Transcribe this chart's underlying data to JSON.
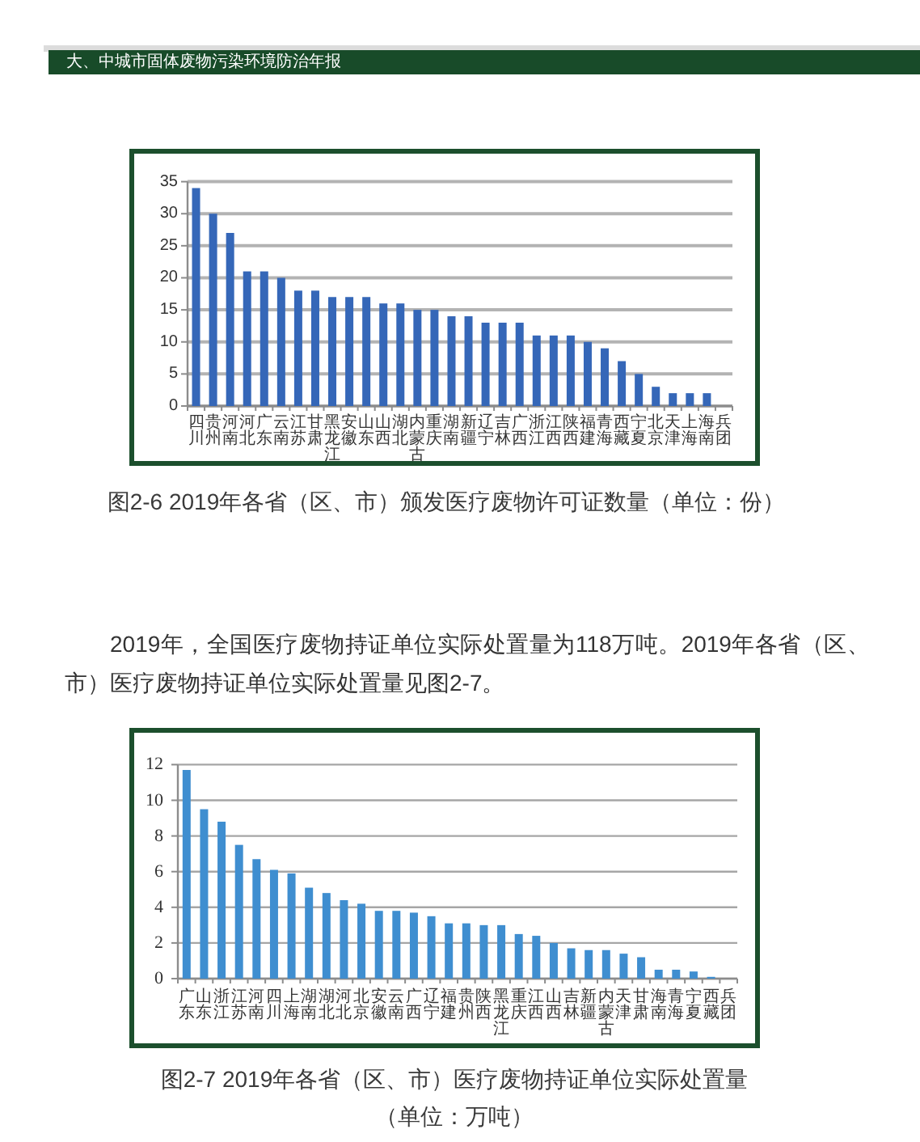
{
  "chart_data": [
    {
      "type": "bar",
      "title": "图2-6 2019年各省（区、市）颁发医疗废物许可证数量（单位：份）",
      "annotations": [
        "大、中城市固体废物污染环境防治年报"
      ],
      "categories": [
        "四川",
        "贵州",
        "河南",
        "河北",
        "广东",
        "云南",
        "江苏",
        "甘肃",
        "黑龙江",
        "安徽",
        "山东",
        "山西",
        "湖北",
        "内蒙古",
        "重庆",
        "湖南",
        "新疆",
        "辽宁",
        "吉林",
        "广西",
        "浙江",
        "江西",
        "陕西",
        "福建",
        "青海",
        "西藏",
        "宁夏",
        "北京",
        "天津",
        "上海",
        "海南",
        "兵团"
      ],
      "values": [
        34,
        30,
        27,
        21,
        21,
        20,
        18,
        18,
        17,
        17,
        17,
        16,
        16,
        15,
        15,
        14,
        14,
        13,
        13,
        13,
        11,
        11,
        11,
        10,
        9,
        7,
        5,
        3,
        2,
        2,
        2,
        0
      ],
      "color": "#3567b8",
      "ylim": [
        0,
        35
      ],
      "yticks": [
        0,
        5,
        10,
        15,
        20,
        25,
        30,
        35
      ],
      "grid": "y"
    },
    {
      "type": "bar",
      "title": "图2-7 2019年各省（区、市）医疗废物持证单位实际处置量",
      "subtitle": "（单位：万吨）",
      "annotations": [
        "2019年，全国医疗废物持证单位实际处置量为118万吨。2019年各省（区、市）医疗废物持证单位实际处置量见图2-7。"
      ],
      "categories": [
        "广东",
        "山东",
        "浙江",
        "江苏",
        "河南",
        "四川",
        "上海",
        "湖南",
        "湖北",
        "河北",
        "北京",
        "安徽",
        "云南",
        "广西",
        "辽宁",
        "福建",
        "贵州",
        "陕西",
        "黑龙江",
        "重庆",
        "江西",
        "山西",
        "吉林",
        "新疆",
        "内蒙古",
        "天津",
        "甘肃",
        "海南",
        "青海",
        "宁夏",
        "西藏",
        "兵团"
      ],
      "values": [
        11.7,
        9.5,
        8.8,
        7.5,
        6.7,
        6.1,
        5.9,
        5.1,
        4.8,
        4.4,
        4.2,
        3.8,
        3.8,
        3.7,
        3.5,
        3.1,
        3.1,
        3.0,
        3.0,
        2.5,
        2.4,
        2.0,
        1.7,
        1.6,
        1.6,
        1.4,
        1.2,
        0.5,
        0.5,
        0.4,
        0.1,
        0
      ],
      "color": "#3f8ed0",
      "ylim": [
        0,
        12
      ],
      "yticks": [
        0,
        2,
        4,
        6,
        8,
        10,
        12
      ],
      "grid": "y"
    }
  ]
}
